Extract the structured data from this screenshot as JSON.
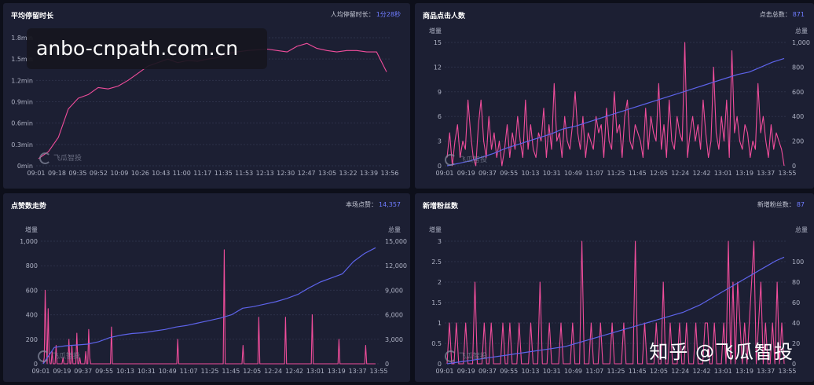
{
  "overlay_text": "anbo-cnpath.com.cn",
  "credit_text": "知乎 @飞瓜智投",
  "watermark_text": "飞瓜智投",
  "colors": {
    "pink": "#f04d9b",
    "blue": "#5d63ea",
    "panel": "#1c1f33",
    "background": "#0d0f1a"
  },
  "panels": [
    {
      "title": "平均停留时长",
      "stat_label": "人均停留时长：",
      "stat_value": "1分28秒"
    },
    {
      "title": "商品点击人数",
      "stat_label": "点击总数：",
      "stat_value": "871"
    },
    {
      "title": "点赞数走势",
      "stat_label": "本场点赞：",
      "stat_value": "14,357"
    },
    {
      "title": "新增粉丝数",
      "stat_label": "新增粉丝数：",
      "stat_value": "87"
    }
  ],
  "chart_data": [
    {
      "type": "line",
      "title": "平均停留时长",
      "x_ticks": [
        "09:01",
        "09:18",
        "09:35",
        "09:52",
        "10:09",
        "10:26",
        "10:43",
        "11:00",
        "11:17",
        "11:35",
        "11:53",
        "12:13",
        "12:30",
        "12:47",
        "13:05",
        "13:22",
        "13:39",
        "13:56"
      ],
      "y_ticks": [
        "0min",
        "0.3min",
        "0.6min",
        "0.9min",
        "1.2min",
        "1.5min",
        "1.8min"
      ],
      "ylim": [
        0,
        1.8
      ],
      "series": [
        {
          "values": [
            0.1,
            0.2,
            0.4,
            0.8,
            0.95,
            1.0,
            1.1,
            1.08,
            1.12,
            1.2,
            1.3,
            1.4,
            1.45,
            1.5,
            1.45,
            1.48,
            1.47,
            1.5,
            1.52,
            1.58,
            1.6,
            1.62,
            1.63,
            1.64,
            1.62,
            1.6,
            1.68,
            1.72,
            1.65,
            1.62,
            1.6,
            1.62,
            1.62,
            1.6,
            1.6,
            1.32
          ],
          "color": "#f04d9b"
        }
      ]
    },
    {
      "type": "line",
      "title": "商品点击人数",
      "left_axis_label": "增量",
      "right_axis_label": "总量",
      "x_ticks": [
        "09:01",
        "09:19",
        "09:37",
        "09:55",
        "10:13",
        "10:31",
        "10:49",
        "11:07",
        "11:25",
        "11:45",
        "12:05",
        "12:24",
        "12:42",
        "13:01",
        "13:19",
        "13:37",
        "13:55"
      ],
      "y_ticks_left": [
        "0",
        "3",
        "6",
        "9",
        "12",
        "15"
      ],
      "y_ticks_right": [
        "0",
        "200",
        "400",
        "600",
        "800",
        "1,000"
      ],
      "ylim_left": [
        0,
        15
      ],
      "ylim_right": [
        0,
        1000
      ],
      "series": [
        {
          "axis": "left",
          "color": "#f04d9b",
          "values": [
            1,
            4,
            0,
            3,
            5,
            1,
            3,
            2,
            8,
            4,
            1,
            0,
            5,
            8,
            3,
            1,
            6,
            2,
            4,
            1,
            3,
            0,
            2,
            5,
            1,
            4,
            2,
            6,
            3,
            1,
            8,
            2,
            5,
            2,
            1,
            4,
            3,
            7,
            1,
            5,
            2,
            10,
            3,
            4,
            1,
            6,
            3,
            2,
            5,
            9,
            4,
            2,
            6,
            1,
            4,
            3,
            2,
            6,
            4,
            5,
            1,
            7,
            3,
            2,
            9,
            4,
            5,
            1,
            6,
            8,
            3,
            2,
            5,
            4,
            3,
            1,
            7,
            2,
            6,
            4,
            3,
            10,
            2,
            5,
            1,
            8,
            3,
            2,
            6,
            4,
            3,
            15,
            1,
            4,
            6,
            3,
            5,
            2,
            8,
            4,
            1,
            3,
            12,
            4,
            2,
            6,
            3,
            8,
            1,
            14,
            4,
            6,
            3,
            2,
            5,
            4,
            1,
            3,
            2,
            10,
            4,
            6,
            3,
            1,
            5,
            2,
            4,
            3,
            2,
            0
          ]
        },
        {
          "axis": "right",
          "color": "#5d63ea",
          "values": [
            0,
            20,
            40,
            70,
            100,
            140,
            170,
            200,
            230,
            260,
            300,
            320,
            350,
            380,
            410,
            440,
            470,
            500,
            530,
            560,
            590,
            620,
            650,
            680,
            710,
            740,
            760,
            800,
            840,
            870
          ]
        }
      ]
    },
    {
      "type": "line",
      "title": "点赞数走势",
      "left_axis_label": "增量",
      "right_axis_label": "总量",
      "x_ticks": [
        "09:01",
        "09:19",
        "09:37",
        "09:55",
        "10:13",
        "10:31",
        "10:49",
        "11:07",
        "11:25",
        "11:45",
        "12:05",
        "12:24",
        "12:42",
        "13:01",
        "13:19",
        "13:37",
        "13:55"
      ],
      "y_ticks_left": [
        "0",
        "200",
        "400",
        "600",
        "800",
        "1,000"
      ],
      "y_ticks_right": [
        "0",
        "3,000",
        "6,000",
        "9,000",
        "12,000",
        "15,000"
      ],
      "ylim_left": [
        0,
        1000
      ],
      "ylim_right": [
        0,
        15000
      ],
      "series": [
        {
          "axis": "left",
          "color": "#f04d9b",
          "values": [
            0,
            50,
            600,
            200,
            0,
            450,
            50,
            0,
            0,
            100,
            0,
            0,
            0,
            150,
            0,
            0,
            0,
            0,
            0,
            0,
            50,
            0,
            0,
            0,
            0,
            0,
            200,
            0,
            0,
            150,
            0,
            0,
            0,
            0,
            250,
            0,
            0,
            50,
            0,
            0,
            0,
            0,
            0,
            100,
            0,
            0,
            280,
            50,
            0,
            0,
            0,
            0,
            0,
            0,
            0,
            0,
            0,
            0,
            0,
            0,
            0,
            0,
            0,
            0,
            0,
            0,
            0,
            0,
            0,
            300,
            0,
            0,
            0,
            0,
            0,
            0,
            0,
            0,
            0,
            0,
            0,
            0,
            0,
            0,
            0,
            0,
            0,
            0,
            0,
            0,
            0,
            0,
            0,
            0,
            0,
            0,
            0,
            0,
            0,
            0,
            0,
            0,
            0,
            0,
            0,
            0,
            0,
            0,
            0,
            0,
            0,
            0,
            0,
            0,
            0,
            0,
            0,
            0,
            0,
            0,
            0,
            0,
            0,
            0,
            0,
            0,
            0,
            0,
            0,
            0,
            0,
            0,
            0,
            0,
            0,
            0,
            200,
            0,
            0,
            0,
            0,
            0,
            0,
            0,
            0,
            0,
            0,
            0,
            0,
            0,
            0,
            0,
            0,
            0,
            0,
            0,
            0,
            0,
            0,
            0,
            0,
            0,
            0,
            0,
            0,
            0,
            0,
            0,
            0,
            0,
            0,
            0,
            0,
            0,
            0,
            0,
            0,
            0,
            0,
            0,
            0,
            0,
            0,
            930,
            0,
            0,
            0,
            0,
            0,
            0,
            0,
            0,
            0,
            0,
            0,
            0,
            0,
            0,
            0,
            0,
            0,
            0,
            150,
            0,
            0,
            0,
            0,
            0,
            0,
            0,
            0,
            0,
            0,
            0,
            0,
            0,
            0,
            0,
            380,
            0,
            0,
            0,
            0,
            0,
            0,
            0,
            0,
            0,
            0,
            0,
            0,
            0,
            0,
            0,
            0,
            0,
            0,
            0,
            0,
            0,
            0,
            0,
            0,
            0,
            0,
            380,
            0,
            0,
            0,
            0,
            0,
            0,
            0,
            0,
            0,
            0,
            0,
            0,
            0,
            0,
            0,
            0,
            0,
            0,
            0,
            0,
            0,
            0,
            0,
            0,
            0,
            0,
            400,
            0,
            0,
            0,
            0,
            0,
            0,
            0,
            0,
            0,
            0,
            0,
            0,
            0,
            0,
            0,
            0,
            0,
            0,
            0,
            0,
            0,
            0,
            0,
            0,
            0,
            0,
            200,
            0,
            0,
            0,
            0,
            0,
            0,
            0,
            0,
            0,
            0,
            0,
            0,
            0,
            0,
            0,
            0,
            0,
            0,
            0,
            0,
            0,
            0,
            0,
            0,
            0,
            0,
            150,
            0,
            0,
            0,
            0,
            0,
            0,
            0,
            0,
            0,
            0
          ]
        },
        {
          "axis": "right",
          "color": "#5d63ea",
          "values": [
            0,
            2000,
            2200,
            2300,
            2400,
            2700,
            3200,
            3500,
            3700,
            3800,
            4000,
            4200,
            4500,
            4700,
            5000,
            5300,
            5600,
            6000,
            6800,
            7000,
            7300,
            7600,
            8000,
            8500,
            9300,
            10000,
            10500,
            11000,
            12500,
            13500,
            14200
          ]
        }
      ]
    },
    {
      "type": "line",
      "title": "新增粉丝数",
      "left_axis_label": "增量",
      "right_axis_label": "总量",
      "x_ticks": [
        "09:01",
        "09:19",
        "09:37",
        "09:55",
        "10:13",
        "10:31",
        "10:49",
        "11:07",
        "11:25",
        "11:45",
        "12:05",
        "12:24",
        "12:42",
        "13:01",
        "13:19",
        "13:37",
        "13:55"
      ],
      "y_ticks_left": [
        "0",
        "0.5",
        "1",
        "1.5",
        "2",
        "2.5",
        "3"
      ],
      "y_ticks_right": [
        "0",
        "20",
        "40",
        "60",
        "80",
        "100"
      ],
      "ylim_left": [
        0,
        3
      ],
      "ylim_right": [
        0,
        100
      ],
      "series": [
        {
          "axis": "left",
          "color": "#f04d9b",
          "values": [
            0,
            1,
            0,
            0,
            1,
            0,
            0,
            0,
            1,
            0,
            0,
            0,
            2,
            0,
            0,
            0,
            1,
            0,
            0,
            1,
            0,
            0,
            0,
            0,
            1,
            0,
            0,
            1,
            0,
            0,
            0,
            1,
            0,
            0,
            0,
            0,
            1,
            0,
            0,
            0,
            2,
            0,
            0,
            0,
            1,
            0,
            0,
            0,
            0,
            1,
            0,
            0,
            0,
            0,
            1,
            0,
            0,
            0,
            3,
            0,
            0,
            0,
            1,
            0,
            0,
            0,
            1,
            0,
            0,
            0,
            0,
            1,
            0,
            0,
            0,
            0,
            1,
            0,
            0,
            0,
            0,
            3,
            0,
            0,
            0,
            1,
            0,
            0,
            0,
            0,
            1,
            0,
            0,
            2,
            0,
            0,
            1,
            0,
            0,
            0,
            1,
            0,
            0,
            1,
            0,
            0,
            0,
            1,
            0,
            0,
            0,
            1,
            1,
            0,
            0,
            1,
            0,
            0,
            0,
            1,
            0,
            3,
            0,
            2,
            0,
            2,
            1,
            0,
            1,
            0,
            1,
            2,
            3,
            0,
            1,
            2,
            0,
            1,
            0,
            0,
            1,
            0,
            2,
            0,
            1,
            0
          ]
        },
        {
          "axis": "right",
          "color": "#5d63ea",
          "values": [
            0,
            1,
            2,
            3,
            4,
            5,
            6,
            7,
            8,
            9,
            10,
            11,
            12,
            13,
            14,
            16,
            18,
            20,
            22,
            24,
            26,
            28,
            30,
            32,
            34,
            36,
            38,
            40,
            42,
            45,
            48,
            52,
            56,
            60,
            64,
            68,
            72,
            76,
            80,
            84,
            87
          ]
        }
      ]
    }
  ]
}
